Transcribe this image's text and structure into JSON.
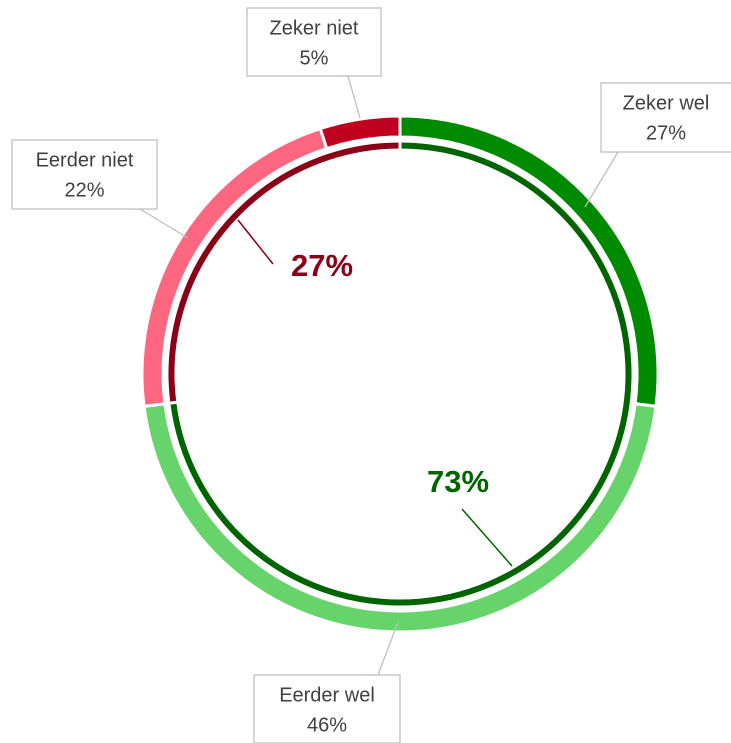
{
  "chart_data": {
    "type": "donut",
    "rings": [
      {
        "categories": [
          "Zeker wel",
          "Eerder wel",
          "Eerder niet",
          "Zeker niet"
        ],
        "values": [
          27,
          46,
          22,
          5
        ],
        "value_labels": [
          "27%",
          "46%",
          "22%",
          "5%"
        ],
        "colors": [
          "#008a00",
          "#66d46a",
          "#ff6680",
          "#c0001f"
        ]
      },
      {
        "values": [
          73,
          27
        ],
        "value_labels": [
          "73%",
          "27%"
        ],
        "colors": [
          "#006400",
          "#8b0018"
        ]
      }
    ]
  }
}
